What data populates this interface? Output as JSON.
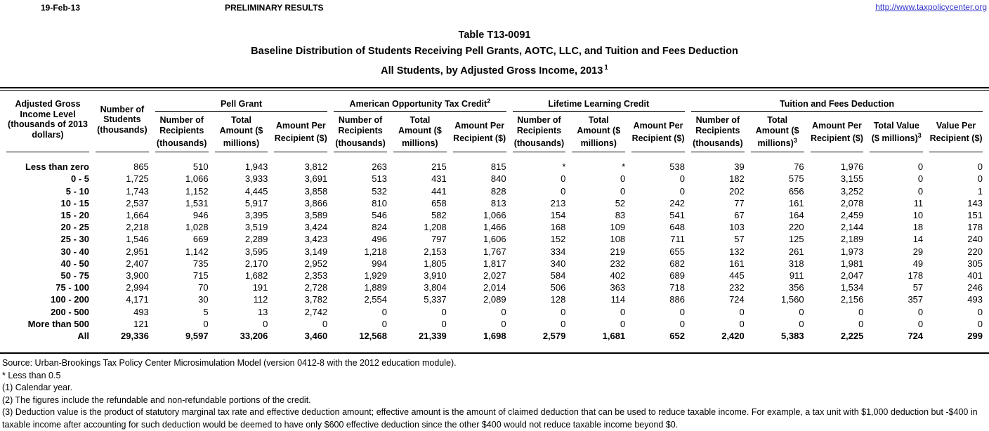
{
  "page": {
    "date": "19-Feb-13",
    "status": "PRELIMINARY RESULTS",
    "link": "http://www.taxpolicycenter.org"
  },
  "title": {
    "line1": "Table T13-0091",
    "line2": "Baseline Distribution of Students Receiving Pell Grants, AOTC, LLC, and Tuition and Fees Deduction",
    "line3": "All Students, by Adjusted Gross Income, 2013",
    "line3_sup": "1"
  },
  "table": {
    "col1_header": "Adjusted Gross Income Level (thousands of 2013 dollars)",
    "col2_header": "Number of Students (thousands)",
    "groups": [
      {
        "label": "Pell Grant",
        "sup": "",
        "cols": [
          {
            "text": "Number of Recipients (thousands)",
            "sup": ""
          },
          {
            "text": "Total Amount ($ millions)",
            "sup": ""
          },
          {
            "text": "Amount Per Recipient ($)",
            "sup": ""
          }
        ]
      },
      {
        "label": "American Opportunity Tax Credit",
        "sup": "2",
        "cols": [
          {
            "text": "Number of Recipients (thousands)",
            "sup": ""
          },
          {
            "text": "Total Amount ($ millions)",
            "sup": ""
          },
          {
            "text": "Amount Per Recipient ($)",
            "sup": ""
          }
        ]
      },
      {
        "label": "Lifetime Learning Credit",
        "sup": "",
        "cols": [
          {
            "text": "Number of Recipients (thousands)",
            "sup": ""
          },
          {
            "text": "Total Amount ($ millions)",
            "sup": ""
          },
          {
            "text": "Amount Per Recipient ($)",
            "sup": ""
          }
        ]
      },
      {
        "label": "Tuition and Fees Deduction",
        "sup": "",
        "cols": [
          {
            "text": "Number of Recipients (thousands)",
            "sup": ""
          },
          {
            "text": "Total Amount ($ millions)",
            "sup": "3"
          },
          {
            "text": "Amount Per Recipient ($)",
            "sup": ""
          },
          {
            "text": "Total Value ($ millions)",
            "sup": "3"
          },
          {
            "text": "Value Per Recipient ($)",
            "sup": ""
          }
        ]
      }
    ],
    "rows": [
      {
        "label": "Less than zero",
        "bold": false,
        "values": [
          "865",
          "510",
          "1,943",
          "3,812",
          "263",
          "215",
          "815",
          "*",
          "*",
          "538",
          "39",
          "76",
          "1,976",
          "0",
          "0"
        ]
      },
      {
        "label": "0 - 5",
        "bold": false,
        "values": [
          "1,725",
          "1,066",
          "3,933",
          "3,691",
          "513",
          "431",
          "840",
          "0",
          "0",
          "0",
          "182",
          "575",
          "3,155",
          "0",
          "0"
        ]
      },
      {
        "label": "5 - 10",
        "bold": false,
        "values": [
          "1,743",
          "1,152",
          "4,445",
          "3,858",
          "532",
          "441",
          "828",
          "0",
          "0",
          "0",
          "202",
          "656",
          "3,252",
          "0",
          "1"
        ]
      },
      {
        "label": "10 - 15",
        "bold": false,
        "values": [
          "2,537",
          "1,531",
          "5,917",
          "3,866",
          "810",
          "658",
          "813",
          "213",
          "52",
          "242",
          "77",
          "161",
          "2,078",
          "11",
          "143"
        ]
      },
      {
        "label": "15 - 20",
        "bold": false,
        "values": [
          "1,664",
          "946",
          "3,395",
          "3,589",
          "546",
          "582",
          "1,066",
          "154",
          "83",
          "541",
          "67",
          "164",
          "2,459",
          "10",
          "151"
        ]
      },
      {
        "label": "20 - 25",
        "bold": false,
        "values": [
          "2,218",
          "1,028",
          "3,519",
          "3,424",
          "824",
          "1,208",
          "1,466",
          "168",
          "109",
          "648",
          "103",
          "220",
          "2,144",
          "18",
          "178"
        ]
      },
      {
        "label": "25 - 30",
        "bold": false,
        "values": [
          "1,546",
          "669",
          "2,289",
          "3,423",
          "496",
          "797",
          "1,606",
          "152",
          "108",
          "711",
          "57",
          "125",
          "2,189",
          "14",
          "240"
        ]
      },
      {
        "label": "30 - 40",
        "bold": false,
        "values": [
          "2,951",
          "1,142",
          "3,595",
          "3,149",
          "1,218",
          "2,153",
          "1,767",
          "334",
          "219",
          "655",
          "132",
          "261",
          "1,973",
          "29",
          "220"
        ]
      },
      {
        "label": "40 - 50",
        "bold": false,
        "values": [
          "2,407",
          "735",
          "2,170",
          "2,952",
          "994",
          "1,805",
          "1,817",
          "340",
          "232",
          "682",
          "161",
          "318",
          "1,981",
          "49",
          "305"
        ]
      },
      {
        "label": "50 - 75",
        "bold": false,
        "values": [
          "3,900",
          "715",
          "1,682",
          "2,353",
          "1,929",
          "3,910",
          "2,027",
          "584",
          "402",
          "689",
          "445",
          "911",
          "2,047",
          "178",
          "401"
        ]
      },
      {
        "label": "75 - 100",
        "bold": false,
        "values": [
          "2,994",
          "70",
          "191",
          "2,728",
          "1,889",
          "3,804",
          "2,014",
          "506",
          "363",
          "718",
          "232",
          "356",
          "1,534",
          "57",
          "246"
        ]
      },
      {
        "label": "100 - 200",
        "bold": false,
        "values": [
          "4,171",
          "30",
          "112",
          "3,782",
          "2,554",
          "5,337",
          "2,089",
          "128",
          "114",
          "886",
          "724",
          "1,560",
          "2,156",
          "357",
          "493"
        ]
      },
      {
        "label": "200 - 500",
        "bold": false,
        "values": [
          "493",
          "5",
          "13",
          "2,742",
          "0",
          "0",
          "0",
          "0",
          "0",
          "0",
          "0",
          "0",
          "0",
          "0",
          "0"
        ]
      },
      {
        "label": "More than 500",
        "bold": false,
        "values": [
          "121",
          "0",
          "0",
          "0",
          "0",
          "0",
          "0",
          "0",
          "0",
          "0",
          "0",
          "0",
          "0",
          "0",
          "0"
        ]
      },
      {
        "label": "All",
        "bold": true,
        "values": [
          "29,336",
          "9,597",
          "33,206",
          "3,460",
          "12,568",
          "21,339",
          "1,698",
          "2,579",
          "1,681",
          "652",
          "2,420",
          "5,383",
          "2,225",
          "724",
          "299"
        ]
      }
    ]
  },
  "footnotes": [
    "Source: Urban-Brookings Tax Policy Center Microsimulation Model (version 0412-8 with the 2012 education module).",
    "* Less than 0.5",
    "(1) Calendar year.",
    "(2) The figures include the refundable and non-refundable portions of the credit.",
    "(3) Deduction value is the product of statutory marginal tax rate and effective deduction amount; effective amount is the amount of claimed deduction that can be used to reduce taxable income.  For example, a tax unit with $1,000 deduction but -$400 in taxable income after accounting for such deduction would be deemed to have only $600 effective deduction since the other $400 would not reduce taxable income beyond $0."
  ]
}
